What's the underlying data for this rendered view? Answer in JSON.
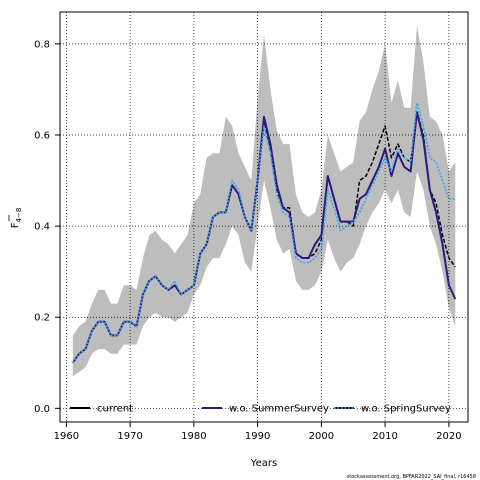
{
  "chart_data": {
    "type": "line",
    "title": "",
    "xlabel": "Years",
    "ylabel": "F̄₄₋₈",
    "ylabel_main": "F",
    "ylabel_sub": "4−8",
    "xlim": [
      1959,
      2023
    ],
    "ylim": [
      -0.03,
      0.87
    ],
    "x_ticks": [
      1960,
      1970,
      1980,
      1990,
      2000,
      2010,
      2020
    ],
    "y_ticks": [
      0.0,
      0.2,
      0.4,
      0.6,
      0.8
    ],
    "y_tick_labels": [
      "0.0",
      "0.2",
      "0.4",
      "0.6",
      "0.8"
    ],
    "grid": true,
    "legend_placement": "bottom",
    "footnote": "stockassessment.org, BPFAR2022_SAI_final, r16458",
    "confidence_band": {
      "x": [
        1961,
        1962,
        1963,
        1964,
        1965,
        1966,
        1967,
        1968,
        1969,
        1970,
        1971,
        1972,
        1973,
        1974,
        1975,
        1976,
        1977,
        1978,
        1979,
        1980,
        1981,
        1982,
        1983,
        1984,
        1985,
        1986,
        1987,
        1988,
        1989,
        1990,
        1991,
        1992,
        1993,
        1994,
        1995,
        1996,
        1997,
        1998,
        1999,
        2000,
        2001,
        2002,
        2003,
        2004,
        2005,
        2006,
        2007,
        2008,
        2009,
        2010,
        2011,
        2012,
        2013,
        2014,
        2015,
        2016,
        2017,
        2018,
        2019,
        2020,
        2021
      ],
      "lower": [
        0.07,
        0.08,
        0.09,
        0.12,
        0.13,
        0.13,
        0.12,
        0.12,
        0.14,
        0.14,
        0.14,
        0.18,
        0.2,
        0.21,
        0.2,
        0.2,
        0.19,
        0.2,
        0.21,
        0.25,
        0.27,
        0.31,
        0.33,
        0.33,
        0.36,
        0.4,
        0.38,
        0.32,
        0.3,
        0.4,
        0.5,
        0.44,
        0.37,
        0.34,
        0.35,
        0.28,
        0.26,
        0.26,
        0.27,
        0.3,
        0.37,
        0.33,
        0.3,
        0.32,
        0.33,
        0.36,
        0.4,
        0.43,
        0.45,
        0.48,
        0.45,
        0.48,
        0.43,
        0.42,
        0.52,
        0.48,
        0.4,
        0.36,
        0.3,
        0.22,
        0.18
      ],
      "upper": [
        0.16,
        0.18,
        0.19,
        0.23,
        0.26,
        0.26,
        0.23,
        0.23,
        0.27,
        0.27,
        0.26,
        0.33,
        0.38,
        0.39,
        0.37,
        0.36,
        0.34,
        0.36,
        0.38,
        0.45,
        0.47,
        0.55,
        0.56,
        0.56,
        0.64,
        0.62,
        0.56,
        0.53,
        0.5,
        0.68,
        0.82,
        0.7,
        0.61,
        0.58,
        0.58,
        0.47,
        0.43,
        0.42,
        0.43,
        0.48,
        0.6,
        0.56,
        0.52,
        0.53,
        0.54,
        0.63,
        0.65,
        0.7,
        0.74,
        0.8,
        0.67,
        0.72,
        0.66,
        0.66,
        0.84,
        0.76,
        0.64,
        0.63,
        0.6,
        0.52,
        0.54
      ]
    },
    "series": [
      {
        "name": "current",
        "color": "#000000",
        "style": "solid-black",
        "x": [
          1961,
          1962,
          1963,
          1964,
          1965,
          1966,
          1967,
          1968,
          1969,
          1970,
          1971,
          1972,
          1973,
          1974,
          1975,
          1976,
          1977,
          1978,
          1979,
          1980,
          1981,
          1982,
          1983,
          1984,
          1985,
          1986,
          1987,
          1988,
          1989,
          1990,
          1991,
          1992,
          1993,
          1994,
          1995,
          1996,
          1997,
          1998,
          1999,
          2000,
          2001,
          2002,
          2003,
          2004,
          2005,
          2006,
          2007,
          2008,
          2009,
          2010,
          2011,
          2012,
          2013,
          2014,
          2015,
          2016,
          2017,
          2018,
          2019,
          2020,
          2021
        ],
        "values": [
          0.1,
          0.12,
          0.13,
          0.17,
          0.19,
          0.19,
          0.16,
          0.16,
          0.19,
          0.19,
          0.18,
          0.25,
          0.28,
          0.29,
          0.27,
          0.26,
          0.27,
          0.25,
          0.26,
          0.27,
          0.34,
          0.36,
          0.42,
          0.43,
          0.43,
          0.49,
          0.47,
          0.42,
          0.39,
          0.5,
          0.63,
          0.57,
          0.48,
          0.44,
          0.44,
          0.34,
          0.33,
          0.33,
          0.34,
          0.37,
          0.51,
          0.46,
          0.41,
          0.41,
          0.4,
          0.5,
          0.51,
          0.54,
          0.58,
          0.62,
          0.55,
          0.58,
          0.55,
          0.54,
          0.65,
          0.6,
          0.48,
          0.45,
          0.38,
          0.33,
          0.31
        ]
      },
      {
        "name": "w.o. SummerSurvey",
        "color": "#2e1a7d",
        "style": "solid-purple",
        "x": [
          1961,
          1962,
          1963,
          1964,
          1965,
          1966,
          1967,
          1968,
          1969,
          1970,
          1971,
          1972,
          1973,
          1974,
          1975,
          1976,
          1977,
          1978,
          1979,
          1980,
          1981,
          1982,
          1983,
          1984,
          1985,
          1986,
          1987,
          1988,
          1989,
          1990,
          1991,
          1992,
          1993,
          1994,
          1995,
          1996,
          1997,
          1998,
          1999,
          2000,
          2001,
          2002,
          2003,
          2004,
          2005,
          2006,
          2007,
          2008,
          2009,
          2010,
          2011,
          2012,
          2013,
          2014,
          2015,
          2016,
          2017,
          2018,
          2019,
          2020,
          2021
        ],
        "values": [
          0.1,
          0.12,
          0.13,
          0.17,
          0.19,
          0.19,
          0.16,
          0.16,
          0.19,
          0.19,
          0.18,
          0.25,
          0.28,
          0.29,
          0.27,
          0.26,
          0.27,
          0.25,
          0.26,
          0.27,
          0.34,
          0.36,
          0.42,
          0.43,
          0.43,
          0.49,
          0.47,
          0.42,
          0.39,
          0.5,
          0.64,
          0.58,
          0.49,
          0.44,
          0.43,
          0.34,
          0.33,
          0.33,
          0.36,
          0.38,
          0.51,
          0.46,
          0.41,
          0.41,
          0.41,
          0.46,
          0.47,
          0.5,
          0.53,
          0.57,
          0.51,
          0.56,
          0.53,
          0.52,
          0.65,
          0.59,
          0.48,
          0.43,
          0.36,
          0.27,
          0.24
        ]
      },
      {
        "name": "w.o. SpringSurvey",
        "color": "#35a8e6",
        "style": "dotted-blue",
        "x": [
          1961,
          1962,
          1963,
          1964,
          1965,
          1966,
          1967,
          1968,
          1969,
          1970,
          1971,
          1972,
          1973,
          1974,
          1975,
          1976,
          1977,
          1978,
          1979,
          1980,
          1981,
          1982,
          1983,
          1984,
          1985,
          1986,
          1987,
          1988,
          1989,
          1990,
          1991,
          1992,
          1993,
          1994,
          1995,
          1996,
          1997,
          1998,
          1999,
          2000,
          2001,
          2002,
          2003,
          2004,
          2005,
          2006,
          2007,
          2008,
          2009,
          2010,
          2011,
          2012,
          2013,
          2014,
          2015,
          2016,
          2017,
          2018,
          2019,
          2020,
          2021
        ],
        "values": [
          0.1,
          0.12,
          0.13,
          0.17,
          0.19,
          0.19,
          0.16,
          0.16,
          0.19,
          0.19,
          0.18,
          0.25,
          0.28,
          0.29,
          0.27,
          0.26,
          0.28,
          0.25,
          0.26,
          0.27,
          0.34,
          0.36,
          0.42,
          0.43,
          0.43,
          0.5,
          0.48,
          0.42,
          0.39,
          0.5,
          0.62,
          0.56,
          0.47,
          0.43,
          0.42,
          0.33,
          0.32,
          0.32,
          0.33,
          0.35,
          0.48,
          0.44,
          0.39,
          0.4,
          0.41,
          0.43,
          0.46,
          0.49,
          0.52,
          0.55,
          0.52,
          0.57,
          0.55,
          0.54,
          0.67,
          0.62,
          0.55,
          0.54,
          0.5,
          0.46,
          0.46
        ]
      }
    ]
  }
}
